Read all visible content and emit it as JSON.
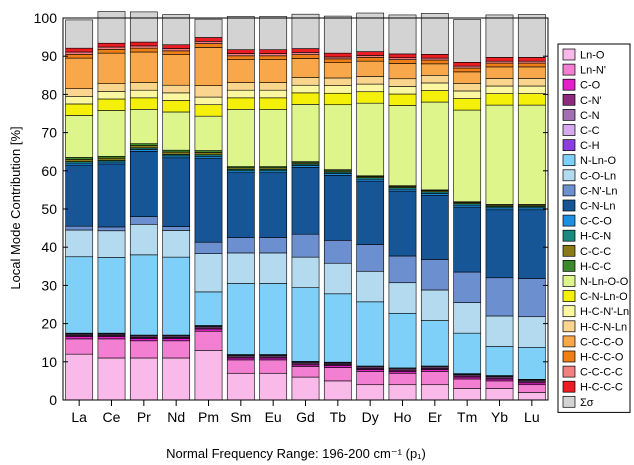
{
  "chart_data": {
    "type": "bar",
    "stacked": true,
    "categories": [
      "La",
      "Ce",
      "Pr",
      "Nd",
      "Pm",
      "Sm",
      "Eu",
      "Gd",
      "Tb",
      "Dy",
      "Ho",
      "Er",
      "Tm",
      "Yb",
      "Lu"
    ],
    "xlabel": "Normal Frequency Range: 196-200 cm⁻¹ (p₁)",
    "ylabel": "Local Mode Contribution [%]",
    "ylim": [
      0,
      100
    ],
    "yticks": [
      0,
      10,
      20,
      30,
      40,
      50,
      60,
      70,
      80,
      90,
      100
    ],
    "legend_position": "right",
    "series": [
      {
        "name": "Ln-O",
        "color": "#f9b9e9",
        "values": [
          12,
          11,
          11,
          11,
          13,
          7,
          7,
          6,
          5,
          4,
          4,
          4,
          3,
          3,
          2
        ]
      },
      {
        "name": "Ln-N'",
        "color": "#f27fd1",
        "values": [
          4,
          5,
          4.5,
          4.5,
          5,
          3.5,
          3.5,
          2.8,
          3.5,
          3.5,
          3,
          3.5,
          2.5,
          2,
          2
        ]
      },
      {
        "name": "C-O",
        "color": "#e020c8",
        "values": [
          0.6,
          0.6,
          0.6,
          0.6,
          0.6,
          0.5,
          0.5,
          0.4,
          0.5,
          0.5,
          0.5,
          0.5,
          0.5,
          0.5,
          0.5
        ]
      },
      {
        "name": "C-N'",
        "color": "#8e2a7c",
        "values": [
          0.3,
          0.3,
          0.3,
          0.3,
          0.3,
          0.3,
          0.3,
          0.3,
          0.3,
          0.3,
          0.3,
          0.3,
          0.3,
          0.3,
          0.3
        ]
      },
      {
        "name": "C-N",
        "color": "#a070b0",
        "values": [
          0.3,
          0.3,
          0.3,
          0.3,
          0.3,
          0.3,
          0.3,
          0.3,
          0.3,
          0.3,
          0.3,
          0.3,
          0.3,
          0.3,
          0.3
        ]
      },
      {
        "name": "C-C",
        "color": "#d6a8ee",
        "values": [
          0.2,
          0.2,
          0.2,
          0.2,
          0.2,
          0.2,
          0.2,
          0.2,
          0.2,
          0.2,
          0.2,
          0.2,
          0.2,
          0.2,
          0.2
        ]
      },
      {
        "name": "C-H",
        "color": "#8a3ee0",
        "values": [
          0.1,
          0.1,
          0.1,
          0.1,
          0.1,
          0.1,
          0.1,
          0.1,
          0.1,
          0.1,
          0.1,
          0.1,
          0.1,
          0.1,
          0.1
        ]
      },
      {
        "name": "N-Ln-O",
        "color": "#7fd0f8",
        "values": [
          20,
          19.8,
          21,
          20.4,
          8.8,
          18.6,
          18.6,
          19.3,
          17.9,
          16.8,
          14.3,
          11.9,
          10.6,
          7.6,
          8.4
        ]
      },
      {
        "name": "C-O-Ln",
        "color": "#b3daee",
        "values": [
          7,
          7,
          8,
          7,
          10,
          8,
          8,
          8,
          8,
          8,
          8,
          8,
          8,
          8,
          8
        ]
      },
      {
        "name": "C-N'-Ln",
        "color": "#6c8fd0",
        "values": [
          1,
          1,
          2,
          1,
          3,
          4,
          4,
          6,
          6,
          7,
          7,
          8,
          8,
          10,
          10
        ]
      },
      {
        "name": "C-N-Ln",
        "color": "#165596",
        "values": [
          16,
          16.5,
          17.1,
          18,
          22,
          17,
          17,
          17.5,
          17,
          16.6,
          17,
          16.8,
          17,
          17.8,
          18
        ]
      },
      {
        "name": "C-C-O",
        "color": "#1f8ee0",
        "values": [
          0.5,
          0.5,
          0.5,
          0.5,
          0.5,
          0.5,
          0.5,
          0.5,
          0.5,
          0.5,
          0.5,
          0.5,
          0.5,
          0.5,
          0.5
        ]
      },
      {
        "name": "H-C-N",
        "color": "#1a8a80",
        "values": [
          0.4,
          0.4,
          0.4,
          0.4,
          0.4,
          0.4,
          0.4,
          0.4,
          0.4,
          0.4,
          0.4,
          0.4,
          0.4,
          0.4,
          0.4
        ]
      },
      {
        "name": "C-C-C",
        "color": "#8a7a18",
        "values": [
          0.6,
          0.6,
          0.6,
          0.6,
          0.6,
          0.4,
          0.4,
          0.3,
          0.3,
          0.3,
          0.3,
          0.3,
          0.3,
          0.3,
          0.3
        ]
      },
      {
        "name": "H-C-C",
        "color": "#3d8a2e",
        "values": [
          0.5,
          0.5,
          0.5,
          0.5,
          0.5,
          0.3,
          0.3,
          0.3,
          0.3,
          0.2,
          0.2,
          0.2,
          0.2,
          0.2,
          0.2
        ]
      },
      {
        "name": "N-Ln-O-O",
        "color": "#ddf58a",
        "values": [
          11,
          12,
          9,
          10,
          9,
          15,
          15,
          15,
          17,
          19,
          21,
          23,
          24,
          26,
          26
        ]
      },
      {
        "name": "C-N-Ln-O",
        "color": "#f4f00a",
        "values": [
          3,
          3,
          3,
          3,
          3,
          3,
          3,
          3,
          3,
          3,
          3,
          3,
          3,
          3,
          3
        ]
      },
      {
        "name": "H-C-N'-Ln",
        "color": "#fbf6a0",
        "values": [
          2,
          2,
          2,
          2,
          2,
          2,
          2,
          2,
          2,
          2,
          2,
          2,
          2,
          2,
          2
        ]
      },
      {
        "name": "H-C-N-Ln",
        "color": "#f9d58e",
        "values": [
          2,
          2,
          2,
          2,
          3,
          2,
          2,
          2,
          2,
          2,
          2,
          2,
          2,
          2,
          2
        ]
      },
      {
        "name": "C-C-C-O",
        "color": "#f8a84a",
        "values": [
          8,
          8,
          8,
          8,
          10,
          6,
          6,
          5,
          4,
          4,
          4,
          3,
          3,
          3,
          3
        ]
      },
      {
        "name": "H-C-C-O",
        "color": "#ee7e18",
        "values": [
          1,
          1,
          1,
          1,
          1,
          1,
          1,
          1,
          1,
          1,
          1,
          1,
          1,
          1,
          1
        ]
      },
      {
        "name": "C-C-C-C",
        "color": "#f38080",
        "values": [
          0.6,
          0.6,
          0.6,
          0.6,
          0.6,
          0.6,
          0.6,
          0.6,
          0.5,
          0.5,
          0.5,
          0.5,
          0.5,
          0.5,
          0.5
        ]
      },
      {
        "name": "H-C-C-C",
        "color": "#ea1c24",
        "values": [
          1,
          1,
          1,
          1,
          1,
          1,
          1,
          1,
          1,
          1,
          1,
          1,
          1,
          1,
          1
        ]
      },
      {
        "name": "Σσ",
        "color": "#d3d3d3",
        "values": [
          7.4,
          8.3,
          7.9,
          7.9,
          4.8,
          8.7,
          8.7,
          9,
          9.7,
          10.1,
          10.2,
          10.7,
          11.2,
          11.1,
          11.2
        ]
      }
    ]
  }
}
